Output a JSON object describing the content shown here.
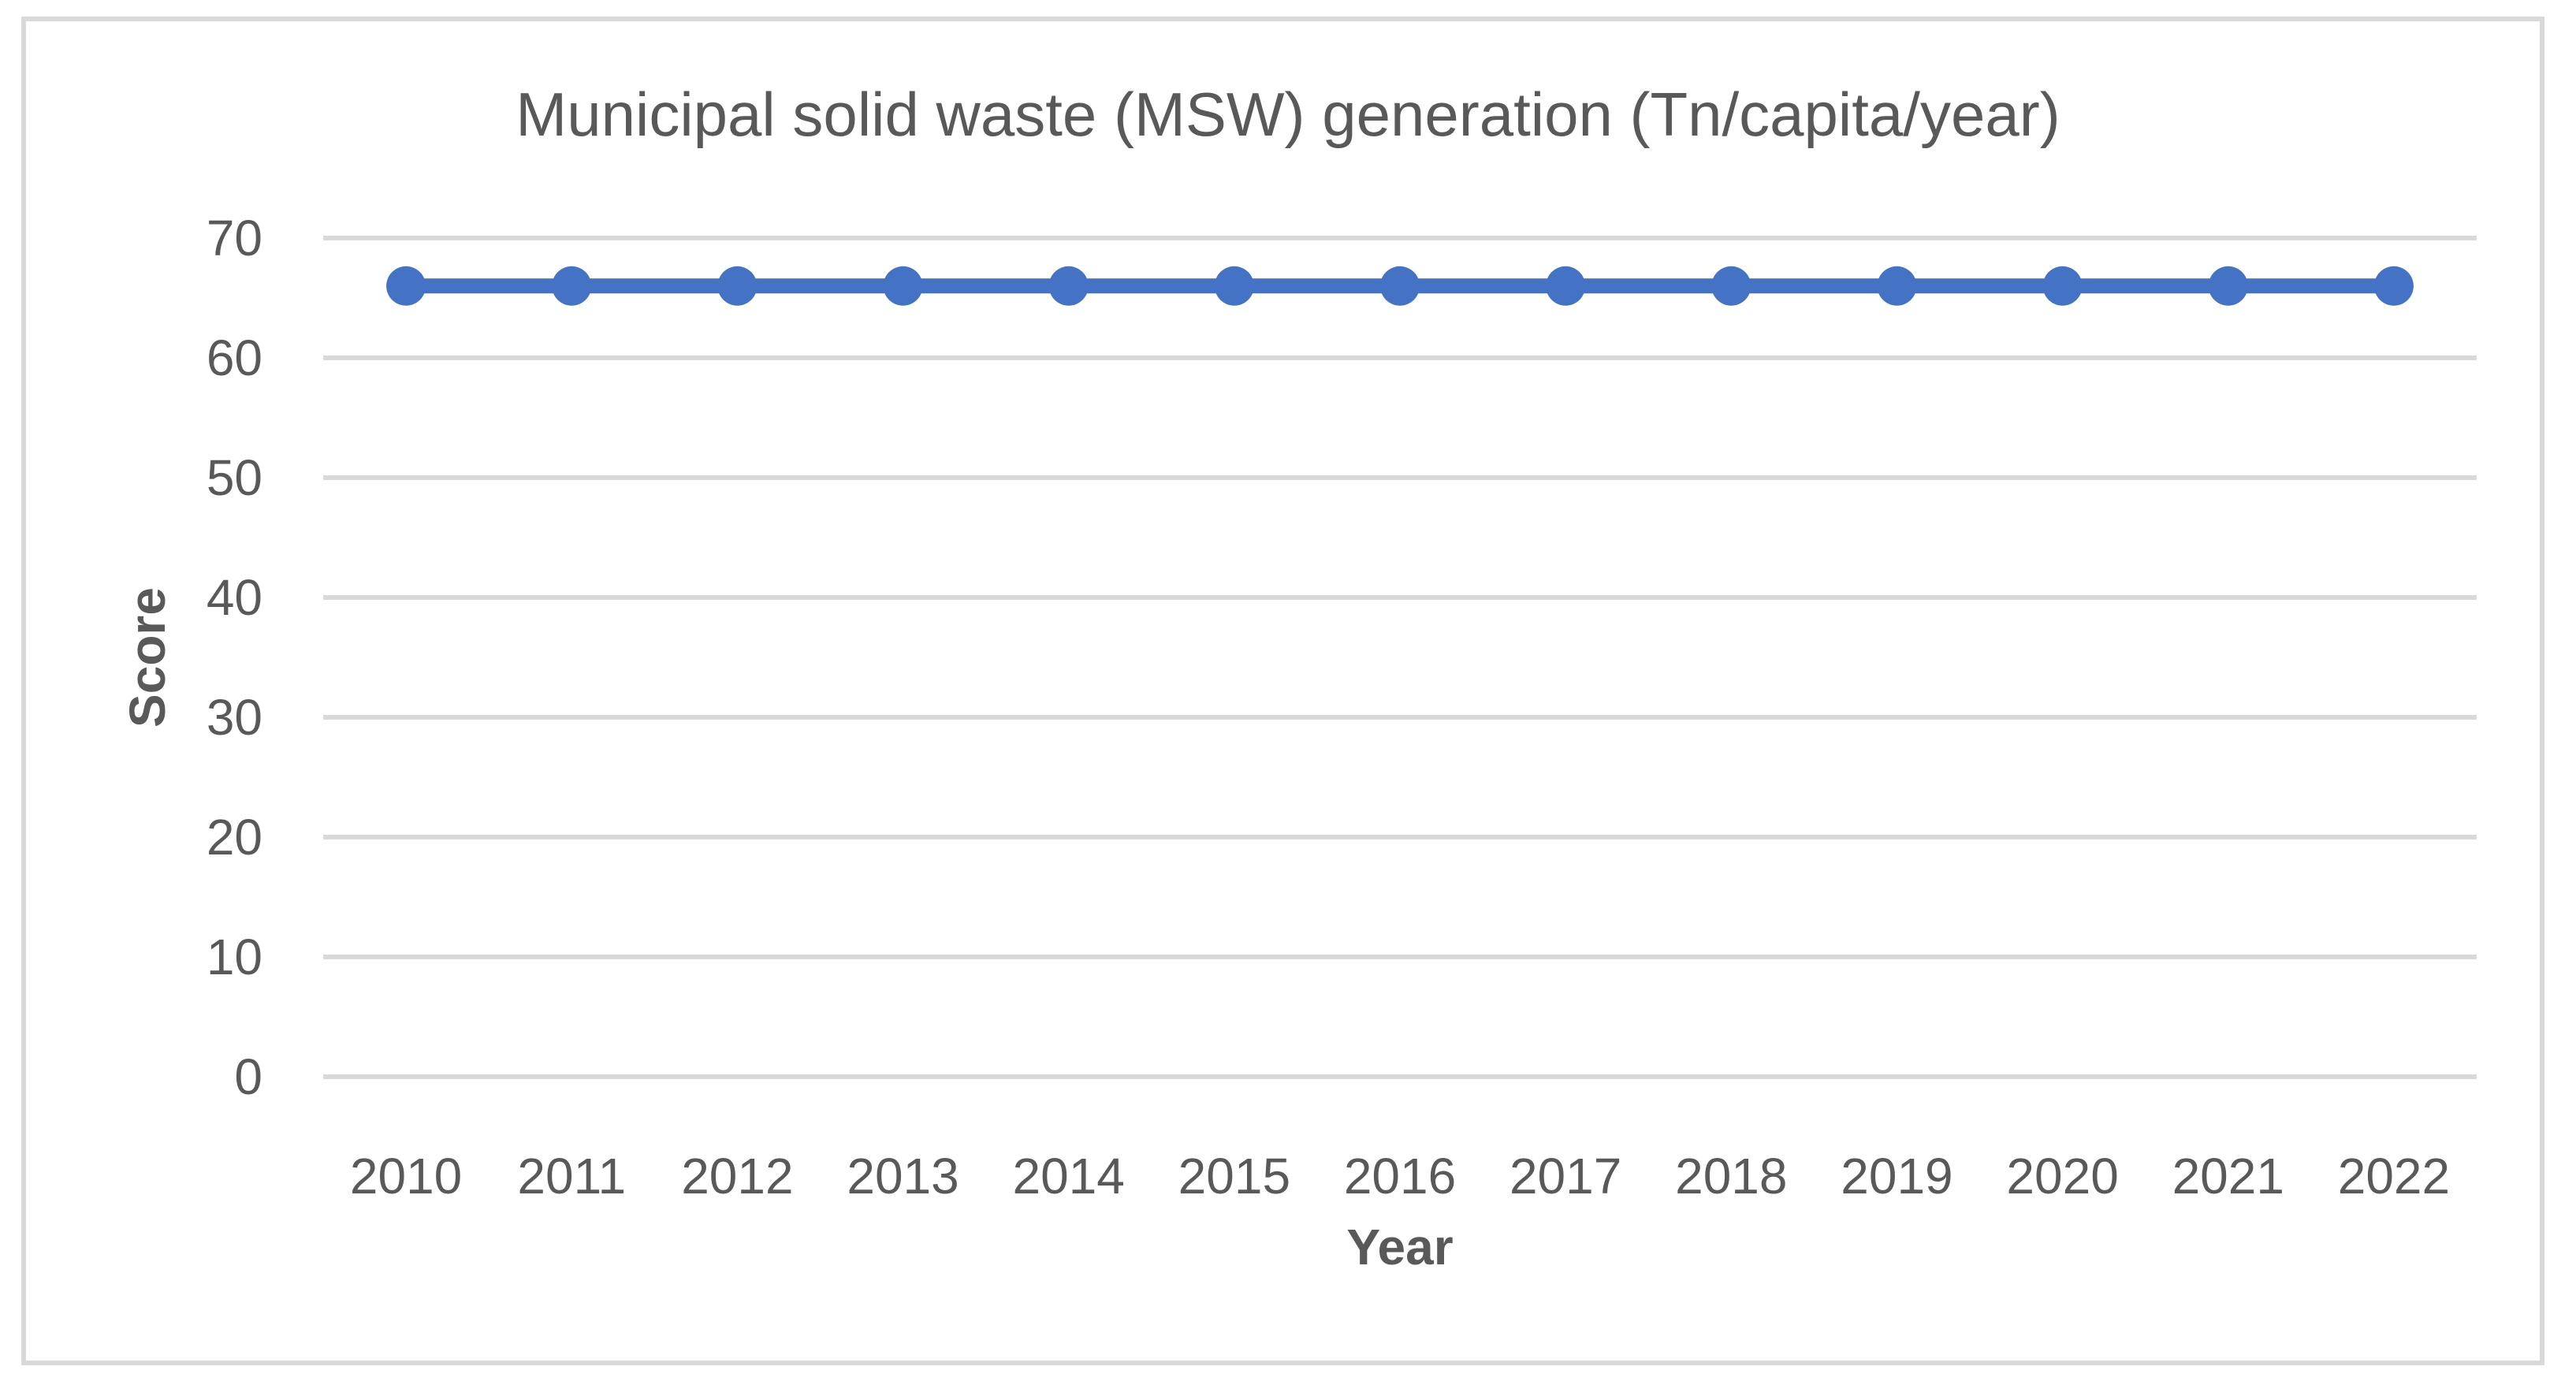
{
  "chart_data": {
    "type": "line",
    "title": "Municipal solid waste (MSW) generation (Tn/capita/year)",
    "xlabel": "Year",
    "ylabel": "Score",
    "categories": [
      "2010",
      "2011",
      "2012",
      "2013",
      "2014",
      "2015",
      "2016",
      "2017",
      "2018",
      "2019",
      "2020",
      "2021",
      "2022"
    ],
    "series": [
      {
        "values": [
          66,
          66,
          66,
          66,
          66,
          66,
          66,
          66,
          66,
          66,
          66,
          66,
          66
        ],
        "color": "#4472C4"
      }
    ],
    "ylim": [
      0,
      70
    ],
    "yticks": [
      0,
      10,
      20,
      30,
      40,
      50,
      60,
      70
    ],
    "grid": true,
    "legend": "none",
    "gridline_color": "#D9D9D9",
    "axis_line_color": "#D9D9D9",
    "text_color": "#595959",
    "frame_border_color": "#D9D9D9",
    "background_color": "#FFFFFF"
  }
}
